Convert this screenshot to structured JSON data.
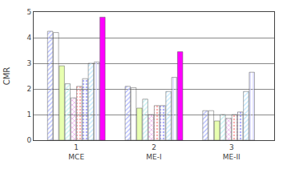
{
  "chart_data": {
    "type": "bar",
    "ylabel": "CMR",
    "categories": [
      "1\nMCE",
      "2\nME-I",
      "3\nME-II"
    ],
    "series": [
      {
        "color": "#b0b8ff",
        "values": [
          4.25,
          2.1,
          1.15
        ]
      },
      {
        "color": "#ffffff",
        "values": [
          4.2,
          2.05,
          1.15
        ]
      },
      {
        "color": "#e8ffb0",
        "values": [
          2.9,
          1.25,
          0.75
        ]
      },
      {
        "color": "#c0f0f0",
        "values": [
          2.2,
          1.6,
          1.0
        ]
      },
      {
        "color": "#e8a0e8",
        "values": [
          1.65,
          1.0,
          0.85
        ]
      },
      {
        "color": "#ffb0b0",
        "values": [
          2.1,
          1.35,
          1.0
        ]
      },
      {
        "color": "#b0b0ff",
        "values": [
          2.4,
          1.35,
          1.1
        ]
      },
      {
        "color": "#c0e8ff",
        "values": [
          3.0,
          1.9,
          1.9
        ]
      },
      {
        "color": "#d0d0ff",
        "values": [
          3.05,
          2.45,
          2.65
        ]
      },
      {
        "color": "#ff00ff",
        "values": [
          4.8,
          3.45,
          null
        ]
      }
    ],
    "ylim": [
      0,
      5
    ],
    "yticks": [
      0,
      1,
      2,
      3,
      4,
      5
    ],
    "grid": true
  }
}
